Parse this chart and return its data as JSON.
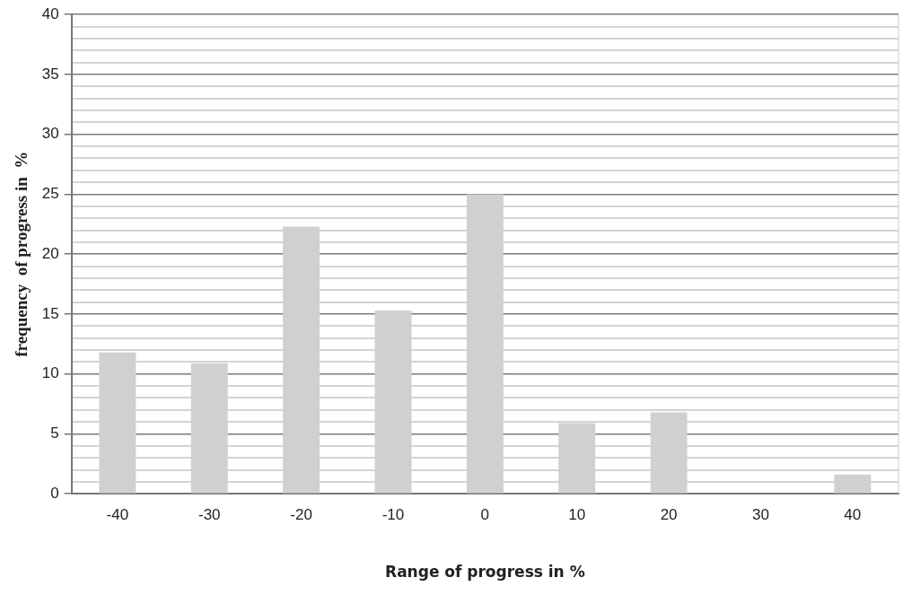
{
  "chart_data": {
    "type": "bar",
    "xlabel": "Range of progress in %",
    "ylabel": "frequency  of progress in  %",
    "categories": [
      "-40",
      "-30",
      "-20",
      "-10",
      "0",
      "10",
      "20",
      "30",
      "40"
    ],
    "values": [
      11.8,
      10.9,
      22.3,
      15.3,
      25,
      5.9,
      6.8,
      0,
      1.6
    ],
    "color": "#d0d0d0",
    "ylim": [
      0,
      40
    ],
    "yticks": [
      0,
      {
        "value": 1,
        "label": null
      },
      {
        "value": 2,
        "label": null
      },
      {
        "value": 3,
        "label": null
      },
      {
        "value": 4,
        "label": null
      },
      5,
      {
        "value": 6,
        "label": null
      },
      {
        "value": 7,
        "label": null
      },
      {
        "value": 8,
        "label": null
      },
      {
        "value": 9,
        "label": null
      },
      10,
      {
        "value": 11,
        "label": null
      },
      {
        "value": 12,
        "label": null
      },
      {
        "value": 13,
        "label": null
      },
      {
        "value": 14,
        "label": null
      },
      15,
      {
        "value": 16,
        "label": null
      },
      {
        "value": 17,
        "label": null
      },
      {
        "value": 18,
        "label": null
      },
      {
        "value": 19,
        "label": null
      },
      20,
      {
        "value": 21,
        "label": null
      },
      {
        "value": 22,
        "label": null
      },
      {
        "value": 23,
        "label": null
      },
      {
        "value": 24,
        "label": null
      },
      25,
      {
        "value": 26,
        "label": null
      },
      {
        "value": 27,
        "label": null
      },
      {
        "value": 28,
        "label": null
      },
      {
        "value": 29,
        "label": null
      },
      30,
      {
        "value": 31,
        "label": null
      },
      {
        "value": 32,
        "label": null
      },
      {
        "value": 33,
        "label": null
      },
      {
        "value": 34,
        "label": null
      },
      35,
      {
        "value": 36,
        "label": null
      },
      {
        "value": 37,
        "label": null
      },
      {
        "value": 38,
        "label": null
      },
      {
        "value": 39,
        "label": null
      },
      40
    ],
    "grid": "y"
  }
}
